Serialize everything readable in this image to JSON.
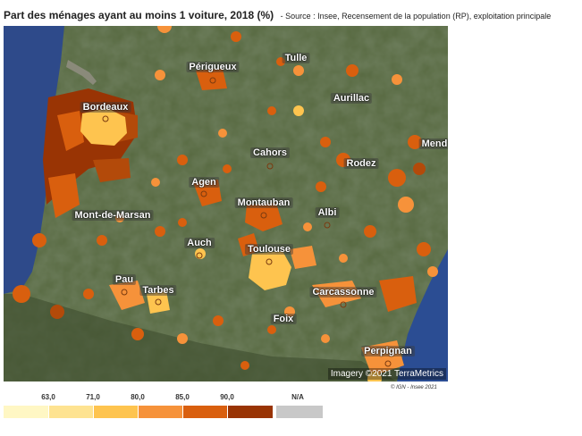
{
  "header": {
    "title": "Part des ménages ayant au moins 1 voiture, 2018 (%)",
    "source": "- Source : Insee, Recensement de la population (RP), exploitation principale"
  },
  "map": {
    "cities": [
      {
        "name": "Périgueux"
      },
      {
        "name": "Tulle"
      },
      {
        "name": "Bordeaux"
      },
      {
        "name": "Aurillac"
      },
      {
        "name": "Mend"
      },
      {
        "name": "Cahors"
      },
      {
        "name": "Rodez"
      },
      {
        "name": "Agen"
      },
      {
        "name": "Montauban"
      },
      {
        "name": "Albi"
      },
      {
        "name": "Mont-de-Marsan"
      },
      {
        "name": "Auch"
      },
      {
        "name": "Toulouse"
      },
      {
        "name": "Carcassonne"
      },
      {
        "name": "Pau"
      },
      {
        "name": "Tarbes"
      },
      {
        "name": "Foix"
      },
      {
        "name": "Perpignan"
      }
    ],
    "imagery_credit": "Imagery ©2021 TerraMetrics",
    "copyright": "© IGN - Insee 2021"
  },
  "legend": {
    "ticks": [
      "63,0",
      "71,0",
      "80,0",
      "85,0",
      "90,0",
      "N/A"
    ],
    "classes": [
      {
        "color": "#fff7c4"
      },
      {
        "color": "#fee391"
      },
      {
        "color": "#fec44f"
      },
      {
        "color": "#f6923a"
      },
      {
        "color": "#d95f0e"
      },
      {
        "color": "#993404"
      },
      {
        "color": "#c8c8c8"
      }
    ]
  }
}
